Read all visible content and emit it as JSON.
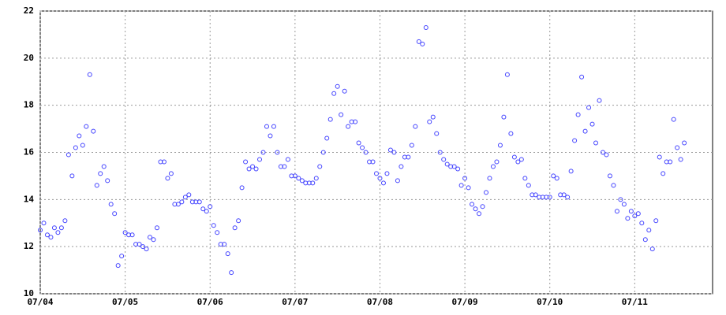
{
  "chart_data": {
    "type": "scatter",
    "color": "#4444ff",
    "grid": true,
    "x": [
      0,
      1,
      2,
      3,
      4,
      5,
      6,
      7,
      8,
      9,
      10,
      11,
      12,
      13,
      14,
      15,
      16,
      17,
      18,
      19,
      20,
      21,
      22,
      23,
      24,
      25,
      26,
      27,
      28,
      29,
      30,
      31,
      32,
      33,
      34,
      35,
      36,
      37,
      38,
      39,
      40,
      41,
      42,
      43,
      44,
      45,
      46,
      47,
      48,
      49,
      50,
      51,
      52,
      53,
      54,
      55,
      56,
      57,
      58,
      59,
      60,
      61,
      62,
      63,
      64,
      65,
      66,
      67,
      68,
      69,
      70,
      71,
      72,
      73,
      74,
      75,
      76,
      77,
      78,
      79,
      80,
      81,
      82,
      83,
      84,
      85,
      86,
      87,
      88,
      89,
      90,
      91,
      92,
      93,
      94,
      95,
      96,
      97,
      98,
      99,
      100,
      101,
      102,
      103,
      104,
      105,
      106,
      107,
      108,
      109,
      110,
      111,
      112,
      113,
      114,
      115,
      116,
      117,
      118,
      119,
      120,
      121,
      122,
      123,
      124,
      125,
      126,
      127,
      128,
      129,
      130,
      131,
      132,
      133,
      134,
      135,
      136,
      137,
      138,
      139,
      140,
      141,
      142,
      143,
      144,
      145,
      146,
      147,
      148,
      149,
      150,
      151,
      152,
      153,
      154,
      155,
      156,
      157,
      158,
      159,
      160,
      161,
      162,
      163,
      164,
      165,
      166,
      167,
      168,
      169,
      170,
      171,
      172,
      173,
      174,
      175,
      176,
      177,
      178,
      179,
      180,
      181,
      182
    ],
    "values": [
      12.7,
      13.0,
      12.5,
      12.4,
      12.8,
      12.6,
      12.8,
      13.1,
      15.9,
      15.0,
      16.2,
      16.7,
      16.3,
      17.1,
      19.3,
      16.9,
      14.6,
      15.1,
      15.4,
      14.8,
      13.8,
      13.4,
      11.2,
      11.6,
      12.6,
      12.5,
      12.5,
      12.1,
      12.1,
      12.0,
      11.9,
      12.4,
      12.3,
      12.8,
      15.6,
      15.6,
      14.9,
      15.1,
      13.8,
      13.8,
      13.9,
      14.1,
      14.2,
      13.9,
      13.9,
      13.9,
      13.6,
      13.5,
      13.7,
      12.9,
      12.6,
      12.1,
      12.1,
      11.7,
      10.9,
      12.8,
      13.1,
      14.5,
      15.6,
      15.3,
      15.4,
      15.3,
      15.7,
      16.0,
      17.1,
      16.7,
      17.1,
      16.0,
      15.4,
      15.4,
      15.7,
      15.0,
      15.0,
      14.9,
      14.8,
      14.7,
      14.7,
      14.7,
      14.9,
      15.4,
      16.0,
      16.6,
      17.4,
      18.5,
      18.8,
      17.6,
      18.6,
      17.1,
      17.3,
      17.3,
      16.4,
      16.2,
      16.0,
      15.6,
      15.6,
      15.1,
      14.9,
      14.7,
      15.1,
      16.1,
      16.0,
      14.8,
      15.4,
      15.8,
      15.8,
      16.3,
      17.1,
      20.7,
      20.6,
      21.3,
      17.3,
      17.5,
      16.8,
      16.0,
      15.7,
      15.5,
      15.4,
      15.4,
      15.3,
      14.6,
      14.9,
      14.5,
      13.8,
      13.6,
      13.4,
      13.7,
      14.3,
      14.9,
      15.4,
      15.6,
      16.3,
      17.5,
      19.3,
      16.8,
      15.8,
      15.6,
      15.7,
      14.9,
      14.6,
      14.2,
      14.2,
      14.1,
      14.1,
      14.1,
      14.1,
      15.0,
      14.9,
      14.2,
      14.2,
      14.1,
      15.2,
      16.5,
      17.6,
      19.2,
      16.9,
      17.9,
      17.2,
      16.4,
      18.2,
      16.0,
      15.9,
      15.0,
      14.6,
      13.5,
      14.0,
      13.8,
      13.2,
      13.5,
      13.3,
      13.4,
      13.0,
      12.3,
      12.7,
      11.9,
      13.1,
      15.8,
      15.1,
      15.6,
      15.6,
      17.4,
      16.2,
      15.7,
      16.4
    ],
    "xlim": [
      0,
      190
    ],
    "xticks": [
      {
        "value": 0,
        "label": "07/04"
      },
      {
        "value": 24,
        "label": "07/05"
      },
      {
        "value": 48,
        "label": "07/06"
      },
      {
        "value": 72,
        "label": "07/07"
      },
      {
        "value": 96,
        "label": "07/08"
      },
      {
        "value": 120,
        "label": "07/09"
      },
      {
        "value": 144,
        "label": "07/10"
      },
      {
        "value": 168,
        "label": "07/11"
      }
    ],
    "ylim": [
      10,
      22
    ],
    "yticks": [
      10,
      12,
      14,
      16,
      18,
      20,
      22
    ]
  }
}
